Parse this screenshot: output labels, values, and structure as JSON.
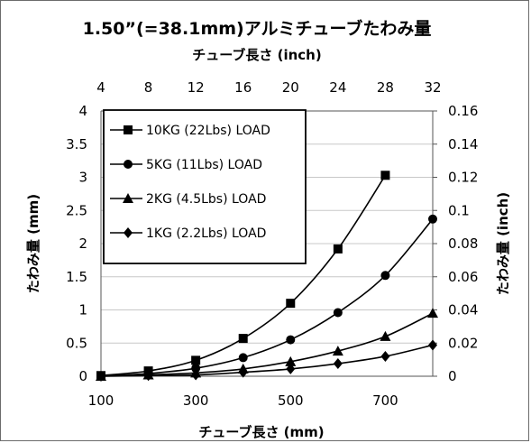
{
  "chart_data": {
    "type": "line",
    "title": "1.50”(=38.1mm)アルミチューブたわみ量",
    "x_top_label": "チューブ長さ (inch)",
    "x_top_ticks": [
      "4",
      "8",
      "12",
      "16",
      "20",
      "24",
      "28",
      "32"
    ],
    "xlabel": "チューブ長さ (mm)",
    "x_tick_labels": [
      "100",
      "300",
      "500",
      "700"
    ],
    "xlim": [
      100,
      800
    ],
    "ylabel_left": "たわみ量 (mm)",
    "y_left_ticks": [
      "0",
      "0.5",
      "1",
      "1.5",
      "2",
      "2.5",
      "3",
      "3.5",
      "4"
    ],
    "ylim": [
      0,
      4
    ],
    "ylabel_right": "たわみ量 (inch)",
    "y_right_ticks": [
      "0",
      "0.02",
      "0.04",
      "0.06",
      "0.08",
      "0.1",
      "0.12",
      "0.14",
      "0.16"
    ],
    "legend_position": "top-left",
    "grid": "horizontal",
    "x": [
      100,
      200,
      300,
      400,
      500,
      600,
      700,
      800
    ],
    "series": [
      {
        "name": "10KG (22Lbs) LOAD",
        "marker": "square",
        "values": [
          0.01,
          0.08,
          0.24,
          0.57,
          1.1,
          1.92,
          3.03,
          null
        ]
      },
      {
        "name": "5KG (11Lbs) LOAD",
        "marker": "circle",
        "values": [
          0.0,
          0.04,
          0.12,
          0.28,
          0.55,
          0.96,
          1.52,
          2.37
        ]
      },
      {
        "name": "2KG (4.5Lbs) LOAD",
        "marker": "triangle",
        "values": [
          0.0,
          0.02,
          0.05,
          0.11,
          0.22,
          0.38,
          0.6,
          0.95
        ]
      },
      {
        "name": "1KG (2.2Lbs) LOAD",
        "marker": "diamond",
        "values": [
          0.0,
          0.01,
          0.02,
          0.06,
          0.11,
          0.19,
          0.3,
          0.47
        ]
      }
    ]
  }
}
